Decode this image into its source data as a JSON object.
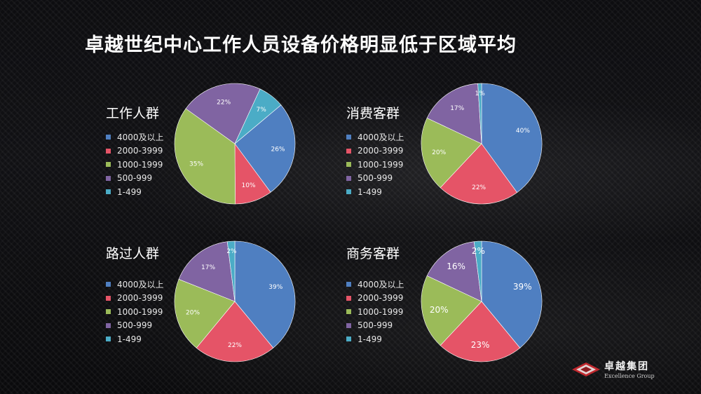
{
  "title": "卓越世纪中心工作人员设备价格明显低于区域平均",
  "colors": {
    "4000plus": "#4f7fc1",
    "2000_3999": "#e55467",
    "1000_1999": "#9bbb59",
    "500_999": "#8064a2",
    "1_499": "#4bacc6"
  },
  "logo": {
    "name_cn": "卓越集团",
    "name_en": "Excellence Group"
  },
  "chart_data": [
    {
      "type": "pie",
      "title": "工作人群",
      "categories": [
        "4000及以上",
        "2000-3999",
        "1000-1999",
        "500-999",
        "1-499"
      ],
      "values": [
        26,
        10,
        35,
        22,
        7
      ],
      "labels": [
        "26%",
        "10%",
        "35%",
        "22%",
        "7%"
      ],
      "legend": "left"
    },
    {
      "type": "pie",
      "title": "消费客群",
      "categories": [
        "4000及以上",
        "2000-3999",
        "1000-1999",
        "500-999",
        "1-499"
      ],
      "values": [
        40,
        22,
        20,
        17,
        1
      ],
      "labels": [
        "40%",
        "22%",
        "20%",
        "17%",
        "1%"
      ],
      "legend": "left"
    },
    {
      "type": "pie",
      "title": "路过人群",
      "categories": [
        "4000及以上",
        "2000-3999",
        "1000-1999",
        "500-999",
        "1-499"
      ],
      "values": [
        39,
        22,
        20,
        17,
        2
      ],
      "labels": [
        "39%",
        "22%",
        "20%",
        "17%",
        "2%"
      ],
      "legend": "left"
    },
    {
      "type": "pie",
      "title": "商务客群",
      "categories": [
        "4000及以上",
        "2000-3999",
        "1000-1999",
        "500-999",
        "1-499"
      ],
      "values": [
        39,
        23,
        20,
        16,
        2
      ],
      "labels": [
        "39%",
        "23%",
        "20%",
        "16%",
        "2%"
      ],
      "legend": "left"
    }
  ]
}
